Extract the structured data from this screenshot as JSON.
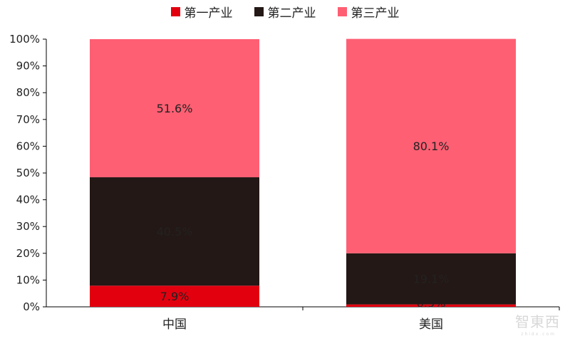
{
  "chart_data": {
    "type": "bar",
    "stacked": true,
    "categories": [
      "中国",
      "美国"
    ],
    "series": [
      {
        "name": "第一产业",
        "color": "#e2000f",
        "values": [
          7.9,
          0.9
        ],
        "labels": [
          "7.9%",
          "0.9%"
        ]
      },
      {
        "name": "第二产业",
        "color": "#231815",
        "values": [
          40.5,
          19.1
        ],
        "labels": [
          "40.5%",
          "19.1%"
        ]
      },
      {
        "name": "第三产业",
        "color": "#ff5f73",
        "values": [
          51.6,
          80.1
        ],
        "labels": [
          "51.6%",
          "80.1%"
        ]
      }
    ],
    "ylim": [
      0,
      100
    ],
    "yticks": [
      "0%",
      "10%",
      "20%",
      "30%",
      "40%",
      "50%",
      "60%",
      "70%",
      "80%",
      "90%",
      "100%"
    ],
    "title": "",
    "xlabel": "",
    "ylabel": "",
    "legend": "top",
    "grid": false
  },
  "watermark": {
    "text": "智東西",
    "sub": "zhidx.com"
  }
}
